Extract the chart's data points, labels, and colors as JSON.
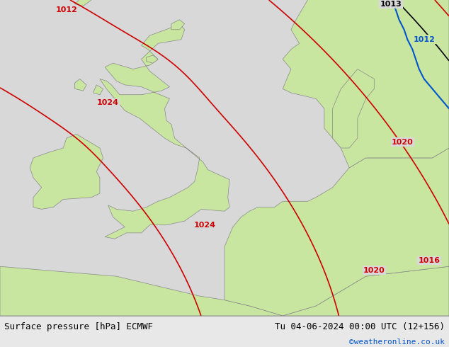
{
  "title_left": "Surface pressure [hPa] ECMWF",
  "title_right": "Tu 04-06-2024 00:00 UTC (12+156)",
  "watermark": "©weatheronline.co.uk",
  "bg_color": "#d8d8d8",
  "land_color": "#c8e6a0",
  "border_color": "#888888",
  "text_color_black": "#000000",
  "text_color_blue": "#0055cc",
  "footer_bg": "#e8e8e8",
  "contour_red_color": "#cc0000",
  "contour_black_color": "#000000",
  "contour_blue_color": "#0055cc",
  "figsize": [
    6.34,
    4.9
  ],
  "dpi": 100,
  "lon_min": -12,
  "lon_max": 15,
  "lat_min": 46,
  "lat_max": 62
}
